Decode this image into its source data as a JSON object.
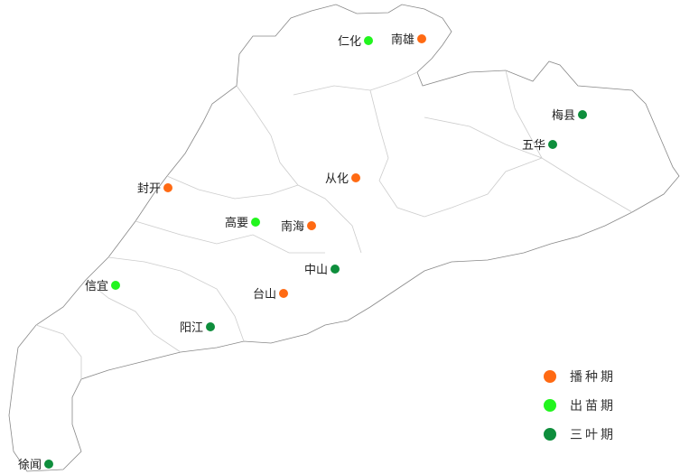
{
  "stage_colors": {
    "播种期": "#FF6A13",
    "出苗期": "#22F51E",
    "三叶期": "#0E8E3C"
  },
  "legend": [
    {
      "label": "播种期",
      "color": "#FF6A13"
    },
    {
      "label": "出苗期",
      "color": "#22F51E"
    },
    {
      "label": "三叶期",
      "color": "#0E8E3C"
    }
  ],
  "stations": [
    {
      "name": "仁化",
      "stage": "出苗期"
    },
    {
      "name": "南雄",
      "stage": "播种期"
    },
    {
      "name": "梅县",
      "stage": "三叶期"
    },
    {
      "name": "五华",
      "stage": "三叶期"
    },
    {
      "name": "封开",
      "stage": "播种期"
    },
    {
      "name": "从化",
      "stage": "播种期"
    },
    {
      "name": "高要",
      "stage": "出苗期"
    },
    {
      "name": "南海",
      "stage": "播种期"
    },
    {
      "name": "中山",
      "stage": "三叶期"
    },
    {
      "name": "信宜",
      "stage": "出苗期"
    },
    {
      "name": "台山",
      "stage": "播种期"
    },
    {
      "name": "阳江",
      "stage": "三叶期"
    },
    {
      "name": "徐闻",
      "stage": "三叶期"
    }
  ]
}
